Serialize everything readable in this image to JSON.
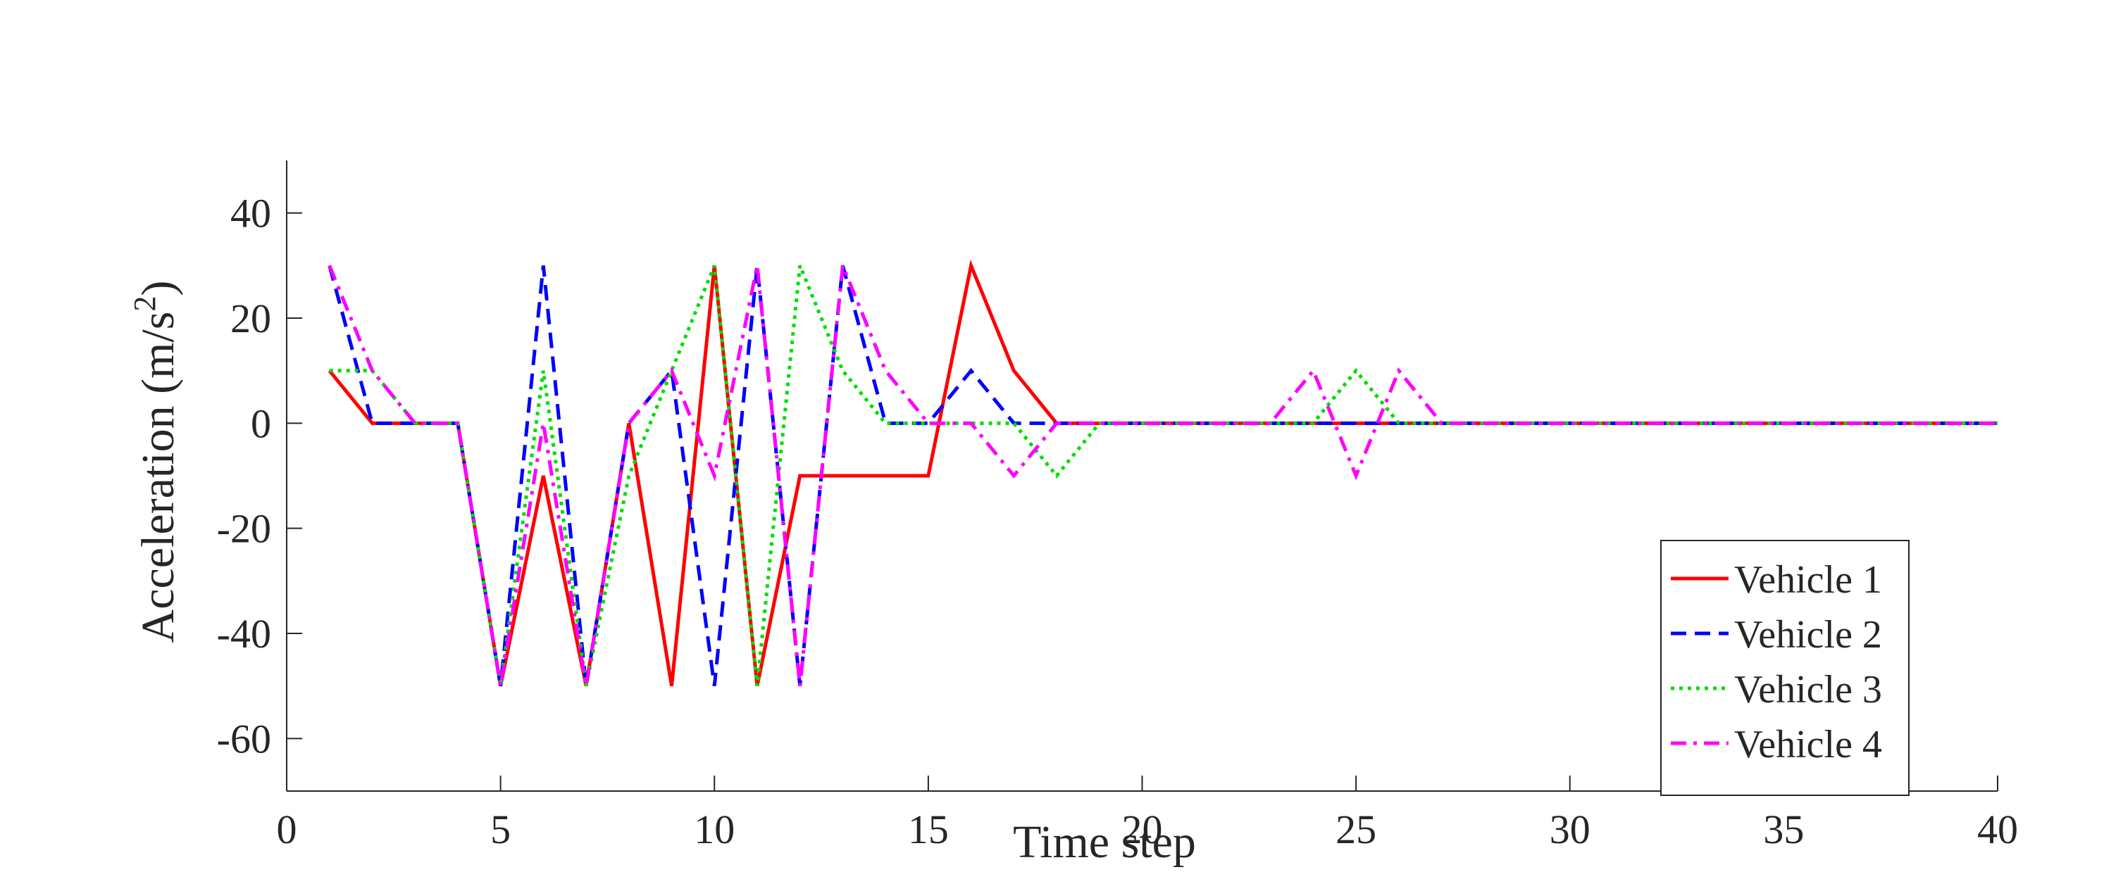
{
  "chart_data": {
    "type": "line",
    "title": "",
    "xlabel": "Time step",
    "ylabel": "Acceleration (m/s",
    "ylabel_superscript": "2",
    "ylabel_suffix": ")",
    "xlim": [
      0,
      40
    ],
    "ylim": [
      -70,
      50
    ],
    "xticks": [
      0,
      5,
      10,
      15,
      20,
      25,
      30,
      35,
      40
    ],
    "yticks": [
      -60,
      -40,
      -20,
      0,
      20,
      40
    ],
    "grid": false,
    "legend_position": "bottom-right",
    "x": [
      1,
      2,
      3,
      4,
      5,
      6,
      7,
      8,
      9,
      10,
      11,
      12,
      13,
      14,
      15,
      16,
      17,
      18,
      19,
      20,
      21,
      22,
      23,
      24,
      25,
      26,
      27,
      28,
      29,
      30,
      31,
      32,
      33,
      34,
      35,
      36,
      37,
      38,
      39,
      40
    ],
    "series": [
      {
        "name": "Vehicle 1",
        "color": "#ff0000",
        "style": "solid",
        "values": [
          10,
          0,
          0,
          0,
          -50,
          -10,
          -50,
          0,
          -50,
          30,
          -50,
          -10,
          -10,
          -10,
          -10,
          30,
          10,
          0,
          0,
          0,
          0,
          0,
          0,
          0,
          0,
          0,
          0,
          0,
          0,
          0,
          0,
          0,
          0,
          0,
          0,
          0,
          0,
          0,
          0,
          0
        ]
      },
      {
        "name": "Vehicle 2",
        "color": "#0000ff",
        "style": "dashed",
        "values": [
          30,
          0,
          0,
          0,
          -50,
          30,
          -50,
          0,
          10,
          -50,
          30,
          -50,
          30,
          0,
          0,
          10,
          0,
          0,
          0,
          0,
          0,
          0,
          0,
          0,
          0,
          0,
          0,
          0,
          0,
          0,
          0,
          0,
          0,
          0,
          0,
          0,
          0,
          0,
          0,
          0
        ]
      },
      {
        "name": "Vehicle 3",
        "color": "#00dd00",
        "style": "dotted",
        "values": [
          10,
          10,
          0,
          0,
          -50,
          10,
          -50,
          -10,
          10,
          30,
          -50,
          30,
          10,
          0,
          0,
          0,
          0,
          -10,
          0,
          0,
          0,
          0,
          0,
          0,
          10,
          0,
          0,
          0,
          0,
          0,
          0,
          0,
          0,
          0,
          0,
          0,
          0,
          0,
          0,
          0
        ]
      },
      {
        "name": "Vehicle 4",
        "color": "#ff00ff",
        "style": "dashdot",
        "values": [
          30,
          10,
          0,
          0,
          -50,
          0,
          -50,
          0,
          10,
          -10,
          30,
          -50,
          30,
          10,
          0,
          0,
          -10,
          0,
          0,
          0,
          0,
          0,
          0,
          10,
          -10,
          10,
          0,
          0,
          0,
          0,
          0,
          0,
          0,
          0,
          0,
          0,
          0,
          0,
          0,
          0
        ]
      }
    ]
  }
}
